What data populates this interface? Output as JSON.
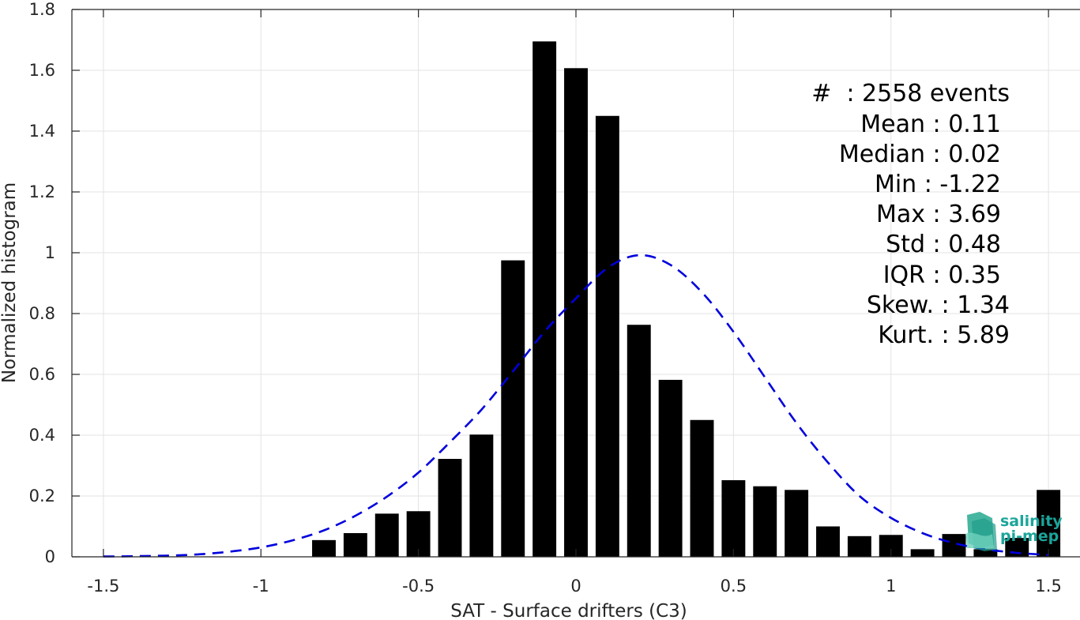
{
  "chart_data": {
    "type": "bar",
    "xlabel": "SAT - Surface drifters (C3)",
    "ylabel": "Normalized histogram",
    "xlim": [
      -1.6,
      1.6
    ],
    "ylim": [
      0,
      1.8
    ],
    "grid": true,
    "x_ticks": [
      {
        "value": -1.5,
        "label": "-1.5"
      },
      {
        "value": -1,
        "label": "-1"
      },
      {
        "value": -0.5,
        "label": "-0.5"
      },
      {
        "value": 0,
        "label": "0"
      },
      {
        "value": 0.5,
        "label": "0.5"
      },
      {
        "value": 1,
        "label": "1"
      },
      {
        "value": 1.5,
        "label": "1.5"
      }
    ],
    "y_ticks": [
      {
        "value": 0,
        "label": "0"
      },
      {
        "value": 0.2,
        "label": "0.2"
      },
      {
        "value": 0.4,
        "label": "0.4"
      },
      {
        "value": 0.6,
        "label": "0.6"
      },
      {
        "value": 0.8,
        "label": "0.8"
      },
      {
        "value": 1,
        "label": "1"
      },
      {
        "value": 1.2,
        "label": "1.2"
      },
      {
        "value": 1.4,
        "label": "1.4"
      },
      {
        "value": 1.6,
        "label": "1.6"
      },
      {
        "value": 1.8,
        "label": "1.8"
      }
    ],
    "bar_color": "#000000",
    "bar_width": 0.075,
    "bars": [
      {
        "x": -0.8,
        "y": 0.055
      },
      {
        "x": -0.7,
        "y": 0.078
      },
      {
        "x": -0.6,
        "y": 0.142
      },
      {
        "x": -0.5,
        "y": 0.15
      },
      {
        "x": -0.4,
        "y": 0.322
      },
      {
        "x": -0.3,
        "y": 0.402
      },
      {
        "x": -0.2,
        "y": 0.975
      },
      {
        "x": -0.1,
        "y": 1.695
      },
      {
        "x": 0.0,
        "y": 1.607
      },
      {
        "x": 0.1,
        "y": 1.45
      },
      {
        "x": 0.2,
        "y": 0.763
      },
      {
        "x": 0.3,
        "y": 0.582
      },
      {
        "x": 0.4,
        "y": 0.45
      },
      {
        "x": 0.5,
        "y": 0.252
      },
      {
        "x": 0.6,
        "y": 0.232
      },
      {
        "x": 0.7,
        "y": 0.22
      },
      {
        "x": 0.8,
        "y": 0.1
      },
      {
        "x": 0.9,
        "y": 0.068
      },
      {
        "x": 1.0,
        "y": 0.072
      },
      {
        "x": 1.1,
        "y": 0.025
      },
      {
        "x": 1.2,
        "y": 0.075
      },
      {
        "x": 1.3,
        "y": 0.025
      },
      {
        "x": 1.4,
        "y": 0.062
      },
      {
        "x": 1.5,
        "y": 0.22
      }
    ],
    "fit_curve": {
      "style": "dashed",
      "color": "#0000dd",
      "points": [
        {
          "x": -1.5,
          "y": 0.001
        },
        {
          "x": -1.4,
          "y": 0.002
        },
        {
          "x": -1.3,
          "y": 0.004
        },
        {
          "x": -1.2,
          "y": 0.008
        },
        {
          "x": -1.1,
          "y": 0.017
        },
        {
          "x": -1.0,
          "y": 0.031
        },
        {
          "x": -0.9,
          "y": 0.054
        },
        {
          "x": -0.8,
          "y": 0.087
        },
        {
          "x": -0.7,
          "y": 0.135
        },
        {
          "x": -0.6,
          "y": 0.198
        },
        {
          "x": -0.5,
          "y": 0.277
        },
        {
          "x": -0.4,
          "y": 0.377
        },
        {
          "x": -0.3,
          "y": 0.484
        },
        {
          "x": -0.2,
          "y": 0.61
        },
        {
          "x": -0.1,
          "y": 0.74
        },
        {
          "x": 0.0,
          "y": 0.85
        },
        {
          "x": 0.1,
          "y": 0.95
        },
        {
          "x": 0.2,
          "y": 0.992
        },
        {
          "x": 0.3,
          "y": 0.96
        },
        {
          "x": 0.4,
          "y": 0.87
        },
        {
          "x": 0.5,
          "y": 0.74
        },
        {
          "x": 0.6,
          "y": 0.59
        },
        {
          "x": 0.7,
          "y": 0.44
        },
        {
          "x": 0.8,
          "y": 0.31
        },
        {
          "x": 0.9,
          "y": 0.2
        },
        {
          "x": 1.0,
          "y": 0.128
        },
        {
          "x": 1.1,
          "y": 0.078
        },
        {
          "x": 1.2,
          "y": 0.045
        },
        {
          "x": 1.3,
          "y": 0.025
        },
        {
          "x": 1.4,
          "y": 0.013
        },
        {
          "x": 1.5,
          "y": 0.006
        }
      ]
    },
    "stats": [
      {
        "text": "#  : 2558 events"
      },
      {
        "text": "Mean : 0.11"
      },
      {
        "text": "Median : 0.02"
      },
      {
        "text": "Min : -1.22"
      },
      {
        "text": "Max : 3.69"
      },
      {
        "text": "Std : 0.48"
      },
      {
        "text": "IQR : 0.35"
      },
      {
        "text": "Skew. : 1.34"
      },
      {
        "text": "Kurt. : 5.89"
      }
    ]
  },
  "logo": {
    "line1": "salinity",
    "line2": "pi-mep"
  }
}
